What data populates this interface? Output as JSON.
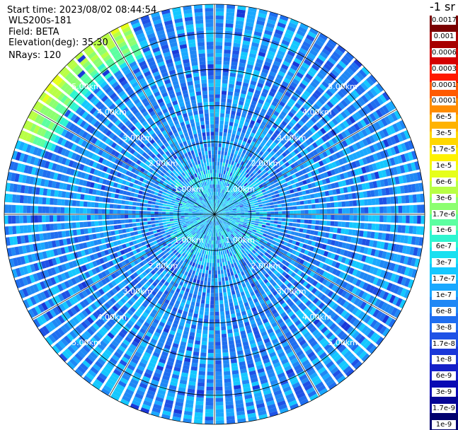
{
  "header": {
    "start_time": "Start time: 2023/08/02 08:44:54",
    "instrument": "WLS200s-181",
    "field": "Field: BETA",
    "elevation": "Elevation(deg): 35.30",
    "nrays": "NRays: 120"
  },
  "colorbar": {
    "unit_label": "-1 sr",
    "labels": [
      "0.0017",
      "0.001",
      "0.0006",
      "0.0003",
      "0.00017",
      "0.0001",
      "6e-5",
      "3e-5",
      "1.7e-5",
      "1e-5",
      "6e-6",
      "3e-6",
      "1.7e-6",
      "1e-6",
      "6e-7",
      "3e-7",
      "1.7e-7",
      "1e-7",
      "6e-8",
      "3e-8",
      "1.7e-8",
      "1e-8",
      "6e-9",
      "3e-9",
      "1.7e-9",
      "1e-9"
    ],
    "colors": [
      "#7a0000",
      "#a80000",
      "#d40000",
      "#ff1a00",
      "#ff5a00",
      "#ff8c00",
      "#ffb300",
      "#ffd700",
      "#fff200",
      "#e6ff1a",
      "#b8ff45",
      "#8cff70",
      "#5cffa0",
      "#2ef5d0",
      "#1ae0f0",
      "#14c8ff",
      "#1aa8ff",
      "#2088f5",
      "#1f6ef0",
      "#1f52e6",
      "#1a38d9",
      "#1420c8",
      "#0a0ab4",
      "#050596",
      "#00006e"
    ]
  },
  "chart_data": {
    "type": "heatmap",
    "projection": "polar PPI",
    "field": "BETA",
    "elevation_deg": 35.3,
    "n_rays": 120,
    "range_rings_km": [
      1.0,
      2.0,
      3.0,
      4.0,
      5.0
    ],
    "ring_labels": [
      "1.00km",
      "2.00km",
      "3.00km",
      "4.00km",
      "5.00km"
    ],
    "max_range_km": 5.8,
    "spokes_deg": [
      0,
      30,
      60,
      90,
      120,
      150,
      180,
      210,
      240,
      270,
      300,
      330
    ],
    "colorscale": "log10 backscatter (1e-9 to 0.0017 sr^-1)",
    "typical_value_range": [
      "1e-8",
      "1e-7"
    ],
    "notable_features": [
      {
        "description": "higher values (yellow/green, ~1e-6 to 3e-6) along outer edge in the north-west sector",
        "azimuth_deg": [
          290,
          335
        ],
        "range_km": [
          4.8,
          5.8
        ]
      },
      {
        "description": "slightly elevated values (~1e-7) near centre",
        "range_km": [
          0.0,
          1.5
        ]
      }
    ],
    "grid": true
  }
}
